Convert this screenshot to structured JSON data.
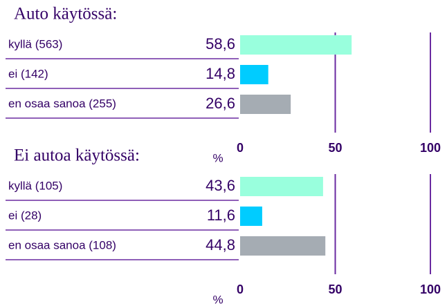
{
  "chart_data": [
    {
      "type": "bar",
      "orientation": "horizontal",
      "title": "Auto käytössä:",
      "categories": [
        "kyllä (563)",
        "ei (142)",
        "en osaa sanoa (255)"
      ],
      "values": [
        58.6,
        14.8,
        26.6
      ],
      "value_labels": [
        "58,6",
        "14,8",
        "26,6"
      ],
      "colors": [
        "#99ffdd",
        "#00ccff",
        "#a5acb3"
      ],
      "xlim": [
        0,
        100
      ],
      "xticks": [
        0,
        50,
        100
      ],
      "x_label": "%",
      "grid": true
    },
    {
      "type": "bar",
      "orientation": "horizontal",
      "title": "Ei autoa käytössä:",
      "categories": [
        "kyllä (105)",
        "ei (28)",
        "en osaa sanoa (108)"
      ],
      "values": [
        43.6,
        11.6,
        44.8
      ],
      "value_labels": [
        "43,6",
        "11,6",
        "44,8"
      ],
      "colors": [
        "#99ffdd",
        "#00ccff",
        "#a5acb3"
      ],
      "xlim": [
        0,
        100
      ],
      "xticks": [
        0,
        50,
        100
      ],
      "x_label": "%",
      "grid": true
    }
  ]
}
